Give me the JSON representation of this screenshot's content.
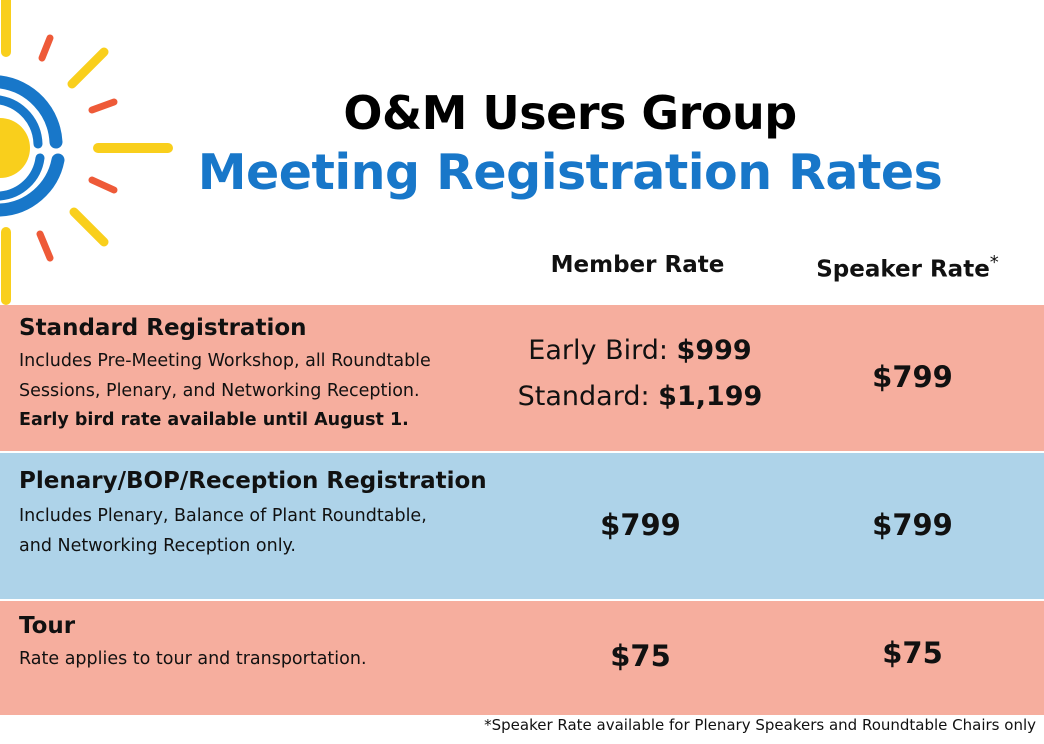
{
  "header": {
    "title": "O&M Users Group",
    "subtitle": "Meeting Registration Rates",
    "colors": {
      "title": "#000000",
      "subtitle": "#1877c9"
    }
  },
  "columns": {
    "member": "Member Rate",
    "speaker": "Speaker Rate",
    "speaker_mark": "*"
  },
  "rows": [
    {
      "title": "Standard Registration",
      "desc_lines": [
        "Includes Pre-Meeting Workshop, all Roundtable",
        "Sessions, Plenary, and Networking Reception."
      ],
      "note": "Early bird rate available until August 1.",
      "member_rates": [
        {
          "label": "Early Bird: ",
          "value": "$999"
        },
        {
          "label": "Standard: ",
          "value": "$1,199"
        }
      ],
      "speaker_rate": "$799",
      "color": "#f6ae9e"
    },
    {
      "title": "Plenary/BOP/Reception Registration",
      "desc_lines": [
        "Includes Plenary, Balance of Plant Roundtable,",
        "and Networking Reception only."
      ],
      "member_rate": "$799",
      "speaker_rate": "$799",
      "color": "#aed3e9"
    },
    {
      "title": "Tour",
      "desc_lines": [
        "Rate applies to tour and transportation."
      ],
      "member_rate": "$75",
      "speaker_rate": "$75",
      "color": "#f6ae9e"
    }
  ],
  "footnote": {
    "mark": "*",
    "text": "Speaker Rate available for Plenary Speakers and Roundtable Chairs only"
  }
}
